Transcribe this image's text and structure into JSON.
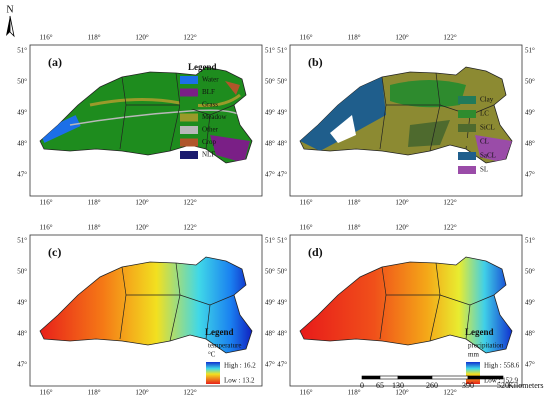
{
  "north": "N",
  "lon_labels": [
    "116°",
    "118°",
    "120°",
    "122°"
  ],
  "lat_labels": [
    "51°",
    "50°",
    "49°",
    "48°",
    "47°"
  ],
  "panels": [
    {
      "label": "(a)",
      "legend": {
        "title": "Legend",
        "items": [
          {
            "label": "Water",
            "color": "#1c6fe8"
          },
          {
            "label": "BLF",
            "color": "#7a1f86"
          },
          {
            "label": "Grass",
            "color": "#1e8c1e"
          },
          {
            "label": "Meadow",
            "color": "#9a9a2a"
          },
          {
            "label": "Other",
            "color": "#b8b8b8"
          },
          {
            "label": "Crop",
            "color": "#b0552a"
          },
          {
            "label": "NLF",
            "color": "#1a1a6e"
          }
        ]
      }
    },
    {
      "label": "(b)",
      "legend": {
        "items": [
          {
            "label": "Clay",
            "color": "#227a5a"
          },
          {
            "label": "LC",
            "color": "#2e8b2e"
          },
          {
            "label": "SiCL",
            "color": "#4e6a2e"
          },
          {
            "label": "CL",
            "color": "#8c8a32"
          },
          {
            "label": "SaCL",
            "color": "#1f5e8c"
          },
          {
            "label": "SL",
            "color": "#9a4ca8"
          }
        ]
      }
    },
    {
      "label": "(c)",
      "legend": {
        "title": "Legend",
        "variable": "temperature",
        "unit": "°C",
        "high": "High : 16.2",
        "low": "Low : 13.2"
      }
    },
    {
      "label": "(d)",
      "legend": {
        "title": "Legend",
        "variable": "precipitation",
        "unit": "mm",
        "high": "High : 558.6",
        "low": "Low : 152.9"
      }
    }
  ],
  "scale_bar": {
    "ticks": [
      "0",
      "65",
      "130",
      "260",
      "390",
      "520"
    ],
    "unit": "Kilometers"
  }
}
